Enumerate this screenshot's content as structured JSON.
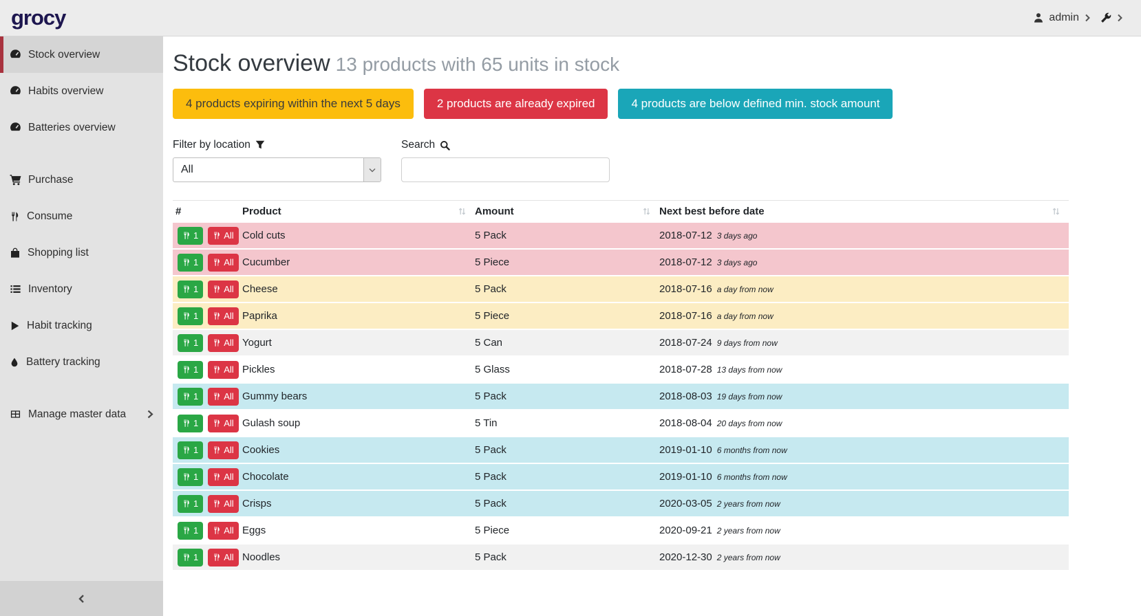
{
  "topbar": {
    "logo": "grocy",
    "user": "admin"
  },
  "sidebar": {
    "items": [
      {
        "label": "Stock overview",
        "icon": "gauge-icon",
        "active": true,
        "gap": false,
        "chevron": false
      },
      {
        "label": "Habits overview",
        "icon": "gauge-icon",
        "active": false,
        "gap": false,
        "chevron": false
      },
      {
        "label": "Batteries overview",
        "icon": "gauge-icon",
        "active": false,
        "gap": false,
        "chevron": false
      },
      {
        "label": "Purchase",
        "icon": "cart-icon",
        "active": false,
        "gap": true,
        "chevron": false
      },
      {
        "label": "Consume",
        "icon": "utensils-icon",
        "active": false,
        "gap": false,
        "chevron": false
      },
      {
        "label": "Shopping list",
        "icon": "bag-icon",
        "active": false,
        "gap": false,
        "chevron": false
      },
      {
        "label": "Inventory",
        "icon": "list-icon",
        "active": false,
        "gap": false,
        "chevron": false
      },
      {
        "label": "Habit tracking",
        "icon": "play-icon",
        "active": false,
        "gap": false,
        "chevron": false
      },
      {
        "label": "Battery tracking",
        "icon": "drop-icon",
        "active": false,
        "gap": false,
        "chevron": false
      },
      {
        "label": "Manage master data",
        "icon": "table-icon",
        "active": false,
        "gap": true,
        "chevron": true
      }
    ]
  },
  "page": {
    "title": "Stock overview",
    "subtitle": "13 products with 65 units in stock"
  },
  "badges": [
    {
      "text": "4 products expiring within the next 5 days",
      "type": "warning"
    },
    {
      "text": "2 products are already expired",
      "type": "danger"
    },
    {
      "text": "4 products are below defined min. stock amount",
      "type": "info"
    }
  ],
  "filter": {
    "label": "Filter by location",
    "value": "All"
  },
  "search": {
    "label": "Search",
    "value": ""
  },
  "table": {
    "headers": [
      {
        "label": "#",
        "sortable": false
      },
      {
        "label": "Product",
        "sortable": true
      },
      {
        "label": "Amount",
        "sortable": true
      },
      {
        "label": "Next best before date",
        "sortable": true
      }
    ],
    "row_buttons": {
      "consume_one": "1",
      "consume_all": "All"
    },
    "rows": [
      {
        "product": "Cold cuts",
        "amount": "5 Pack",
        "date": "2018-07-12",
        "relative": "3 days ago",
        "status": "expired"
      },
      {
        "product": "Cucumber",
        "amount": "5 Piece",
        "date": "2018-07-12",
        "relative": "3 days ago",
        "status": "expired"
      },
      {
        "product": "Cheese",
        "amount": "5 Pack",
        "date": "2018-07-16",
        "relative": "a day from now",
        "status": "expiring"
      },
      {
        "product": "Paprika",
        "amount": "5 Piece",
        "date": "2018-07-16",
        "relative": "a day from now",
        "status": "expiring"
      },
      {
        "product": "Yogurt",
        "amount": "5 Can",
        "date": "2018-07-24",
        "relative": "9 days from now",
        "status": "none"
      },
      {
        "product": "Pickles",
        "amount": "5 Glass",
        "date": "2018-07-28",
        "relative": "13 days from now",
        "status": "none"
      },
      {
        "product": "Gummy bears",
        "amount": "5 Pack",
        "date": "2018-08-03",
        "relative": "19 days from now",
        "status": "below-min"
      },
      {
        "product": "Gulash soup",
        "amount": "5 Tin",
        "date": "2018-08-04",
        "relative": "20 days from now",
        "status": "none"
      },
      {
        "product": "Cookies",
        "amount": "5 Pack",
        "date": "2019-01-10",
        "relative": "6 months from now",
        "status": "below-min"
      },
      {
        "product": "Chocolate",
        "amount": "5 Pack",
        "date": "2019-01-10",
        "relative": "6 months from now",
        "status": "below-min"
      },
      {
        "product": "Crisps",
        "amount": "5 Pack",
        "date": "2020-03-05",
        "relative": "2 years from now",
        "status": "below-min"
      },
      {
        "product": "Eggs",
        "amount": "5 Piece",
        "date": "2020-09-21",
        "relative": "2 years from now",
        "status": "none"
      },
      {
        "product": "Noodles",
        "amount": "5 Pack",
        "date": "2020-12-30",
        "relative": "2 years from now",
        "status": "none"
      }
    ]
  },
  "colors": {
    "accent_active": "#a8323e",
    "badge_warning": "#fcbd0d",
    "badge_danger": "#dc3545",
    "badge_info": "#1aa6b8",
    "button_consume_one": "#2aa745",
    "button_consume_all": "#dc3545",
    "row_expired": "#f4c6cd",
    "row_expiring": "#fcedc3",
    "row_below_min": "#c6e9f0",
    "row_striped": "#f1f1f1",
    "logo": "#1d164f"
  }
}
